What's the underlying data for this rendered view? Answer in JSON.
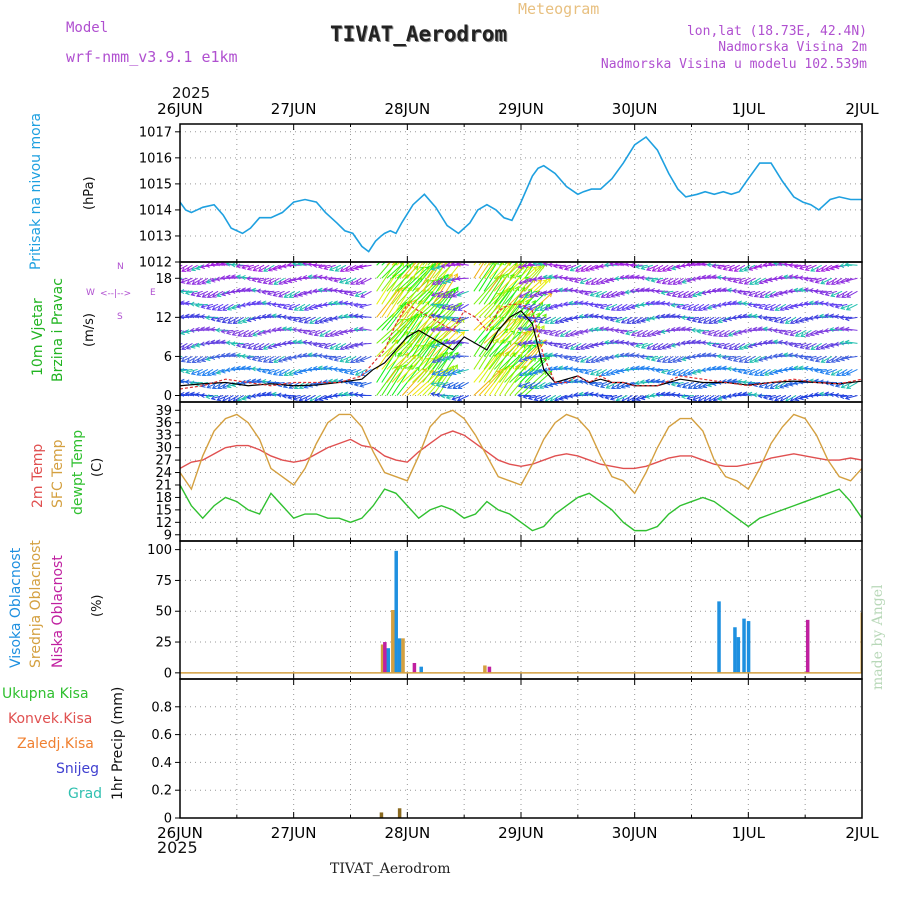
{
  "header": {
    "model_label": "Model",
    "model_name": "wrf-nmm_v3.9.1  e1km",
    "product": "Meteogram",
    "station": "TIVAT_Aerodrom",
    "lonlat": "lon,lat (18.73E, 42.4N)",
    "elevation": "Nadmorska Visina 2m",
    "model_elevation": "Nadmorska Visina u modelu 102.539m",
    "footer_station": "TIVAT_Aerodrom",
    "credit": "made by Angel"
  },
  "colors": {
    "pressure": "#1ea0e0",
    "wind_green": "#22b422",
    "temp2m": "#e05050",
    "sfc_temp": "#d4a040",
    "dewpoint": "#30c030",
    "high_cloud": "#1e90e0",
    "mid_cloud": "#d4a040",
    "low_cloud": "#c020a0",
    "purple": "#b050d0"
  },
  "time_axis": {
    "top_year": "2025",
    "bottom_year": "2025",
    "days": [
      "26JUN",
      "27JUN",
      "28JUN",
      "29JUN",
      "30JUN",
      "1JUL",
      "2JUL"
    ]
  },
  "panel_labels": {
    "pressure": {
      "label": "Pritisak na nivou mora",
      "unit": "(hPa)"
    },
    "wind": {
      "label1": "10m Vjetar",
      "label2": "Brzina i Pravac",
      "unit": "(m/s)",
      "compass_w": "W",
      "compass_e": "E",
      "compass_n": "N",
      "compass_s": "S"
    },
    "temp": {
      "label1": "2m Temp",
      "label2": "SFC Temp",
      "label3": "dewpt Temp",
      "unit": "(C)"
    },
    "cloud": {
      "label1": "Visoka Oblacnost",
      "label2": "Srednja Oblacnost",
      "label3": "Niska Oblacnost",
      "unit": "(%)"
    },
    "precip": {
      "ukupna": "Ukupna Kisa",
      "konvek": "Konvek.Kisa",
      "zaledj": "Zaledj.Kisa",
      "snijeg": "Snijeg",
      "grad": "Grad",
      "unit": "1hr Precip (mm)"
    }
  },
  "chart_data": [
    {
      "type": "line",
      "title": "Pritisak na nivou mora",
      "ylabel": "(hPa)",
      "ylim": [
        1012,
        1017.3
      ],
      "yticks": [
        1012,
        1013,
        1014,
        1015,
        1016,
        1017
      ],
      "x_days": [
        0,
        0.05,
        0.1,
        0.15,
        0.2,
        0.3,
        0.38,
        0.45,
        0.55,
        0.62,
        0.7,
        0.8,
        0.9,
        1,
        1.1,
        1.2,
        1.28,
        1.38,
        1.45,
        1.52,
        1.6,
        1.66,
        1.72,
        1.77,
        1.8,
        1.85,
        1.9,
        1.95,
        2.05,
        2.15,
        2.25,
        2.35,
        2.45,
        2.55,
        2.62,
        2.7,
        2.78,
        2.85,
        2.92,
        3,
        3.05,
        3.1,
        3.15,
        3.2,
        3.3,
        3.4,
        3.5,
        3.55,
        3.62,
        3.7,
        3.8,
        3.9,
        4,
        4.1,
        4.2,
        4.3,
        4.38,
        4.45,
        4.55,
        4.62,
        4.7,
        4.78,
        4.85,
        4.92,
        5,
        5.1,
        5.2,
        5.3,
        5.4,
        5.48,
        5.55,
        5.62,
        5.72,
        5.8,
        5.9,
        6
      ],
      "series": [
        {
          "name": "Pritisak na nivou mora",
          "values": [
            1014.3,
            1014,
            1013.9,
            1014,
            1014.1,
            1014.2,
            1013.8,
            1013.3,
            1013.1,
            1013.3,
            1013.7,
            1013.7,
            1013.9,
            1014.3,
            1014.4,
            1014.3,
            1013.9,
            1013.5,
            1013.2,
            1013.1,
            1012.6,
            1012.4,
            1012.8,
            1013,
            1013.1,
            1013.2,
            1013.1,
            1013.5,
            1014.2,
            1014.6,
            1014.1,
            1013.4,
            1013.1,
            1013.5,
            1014,
            1014.2,
            1014,
            1013.7,
            1013.6,
            1014.3,
            1014.8,
            1015.3,
            1015.6,
            1015.7,
            1015.4,
            1014.9,
            1014.6,
            1014.7,
            1014.8,
            1014.8,
            1015.2,
            1015.8,
            1016.5,
            1016.8,
            1016.3,
            1015.4,
            1014.8,
            1014.5,
            1014.6,
            1014.7,
            1014.6,
            1014.7,
            1014.6,
            1014.7,
            1015.2,
            1015.8,
            1015.8,
            1015.1,
            1014.5,
            1014.3,
            1014.2,
            1014,
            1014.4,
            1014.5,
            1014.4,
            1014.4
          ]
        }
      ]
    },
    {
      "type": "line",
      "title": "10m Vjetar Brzina i Pravac",
      "ylabel": "(m/s)",
      "ylim": [
        -1,
        20.5
      ],
      "yticks": [
        0,
        6,
        12,
        18
      ],
      "x_days": [
        0,
        0.2,
        0.4,
        0.6,
        0.8,
        1,
        1.2,
        1.4,
        1.6,
        1.7,
        1.8,
        1.9,
        2,
        2.1,
        2.2,
        2.3,
        2.4,
        2.5,
        2.6,
        2.7,
        2.8,
        2.9,
        3,
        3.1,
        3.2,
        3.3,
        3.4,
        3.5,
        3.6,
        3.7,
        3.8,
        3.9,
        4,
        4.2,
        4.4,
        4.6,
        4.8,
        5,
        5.2,
        5.4,
        5.6,
        5.8,
        6
      ],
      "series": [
        {
          "name": "speed",
          "values": [
            1.5,
            1.8,
            2,
            1.5,
            1.8,
            1.5,
            1.6,
            2,
            2.5,
            4,
            5,
            7,
            9,
            10,
            9,
            8,
            7,
            9,
            8,
            7,
            10,
            12,
            13,
            11,
            4,
            2,
            2.5,
            3,
            2,
            2.5,
            2,
            2,
            1.5,
            1.5,
            2.5,
            2,
            2,
            1.6,
            2,
            2.2,
            2,
            1.8,
            2.2
          ]
        },
        {
          "name": "gust",
          "values": [
            1,
            1.5,
            2.5,
            2,
            1.5,
            2,
            2,
            2,
            3,
            5,
            7,
            11,
            14,
            13,
            12,
            11,
            10,
            13,
            12,
            10,
            13,
            14,
            14,
            13,
            6,
            2,
            2,
            3,
            2,
            3,
            2,
            2,
            1.5,
            1.5,
            3,
            2.5,
            2,
            1.5,
            2,
            2.5,
            2,
            1.8,
            2.5
          ]
        }
      ]
    },
    {
      "type": "line",
      "title": "2m Temp / SFC Temp / dewpt Temp",
      "ylabel": "(C)",
      "ylim": [
        7.5,
        41
      ],
      "yticks": [
        9,
        12,
        15,
        18,
        21,
        24,
        27,
        30,
        33,
        36,
        39
      ],
      "x_days": [
        0,
        0.1,
        0.2,
        0.3,
        0.4,
        0.5,
        0.6,
        0.7,
        0.8,
        0.9,
        1,
        1.1,
        1.2,
        1.3,
        1.4,
        1.5,
        1.6,
        1.7,
        1.8,
        1.9,
        2,
        2.1,
        2.2,
        2.3,
        2.4,
        2.5,
        2.6,
        2.7,
        2.8,
        2.9,
        3,
        3.1,
        3.2,
        3.3,
        3.4,
        3.5,
        3.6,
        3.7,
        3.8,
        3.9,
        4,
        4.1,
        4.2,
        4.3,
        4.4,
        4.5,
        4.6,
        4.7,
        4.8,
        4.9,
        5,
        5.1,
        5.2,
        5.3,
        5.4,
        5.5,
        5.6,
        5.7,
        5.8,
        5.9,
        6
      ],
      "series": [
        {
          "name": "2m Temp",
          "values": [
            25,
            26.5,
            27,
            28.5,
            30,
            30.5,
            30.5,
            29.5,
            28,
            27,
            26.5,
            27,
            28.5,
            30,
            31,
            32,
            30.5,
            30,
            28,
            27,
            26.5,
            29,
            31,
            33,
            34,
            33,
            31,
            29,
            27,
            26,
            25.5,
            26,
            27,
            28,
            28.5,
            28,
            27,
            26,
            25.5,
            25,
            25,
            25.5,
            26.5,
            27.5,
            28,
            28,
            27,
            26,
            25.5,
            25.5,
            26,
            26.5,
            27.5,
            28,
            28.5,
            28,
            27.5,
            27,
            27,
            27.5,
            27
          ]
        },
        {
          "name": "SFC Temp",
          "values": [
            24,
            20,
            28,
            34,
            37,
            38,
            36,
            32,
            25,
            23,
            21,
            25,
            31,
            36,
            38,
            38,
            35,
            29,
            24,
            23,
            22,
            28,
            35,
            38,
            39,
            37,
            33,
            28,
            23,
            22,
            21,
            26,
            32,
            36,
            38,
            37,
            34,
            28,
            23,
            22,
            19,
            24,
            30,
            35,
            37,
            37,
            34,
            27,
            23,
            22,
            20,
            25,
            31,
            35,
            38,
            37,
            33,
            27,
            23,
            22,
            25
          ]
        },
        {
          "name": "dewpt Temp",
          "values": [
            21,
            16,
            13,
            16,
            18,
            17,
            15,
            14,
            19,
            16,
            13,
            14,
            14,
            13,
            13,
            12,
            13,
            16,
            20,
            19,
            16,
            13,
            15,
            16,
            15,
            13,
            14,
            17,
            15,
            14,
            12,
            10,
            11,
            14,
            16,
            18,
            19,
            17,
            15,
            12,
            10,
            10,
            11,
            14,
            16,
            17,
            18,
            17,
            15,
            13,
            11,
            13,
            14,
            15,
            16,
            17,
            18,
            19,
            20,
            17,
            13
          ]
        }
      ]
    },
    {
      "type": "bar",
      "title": "Visoka / Srednja / Niska Oblacnost",
      "ylabel": "(%)",
      "ylim": [
        -5,
        107
      ],
      "yticks": [
        0,
        25,
        50,
        75,
        100
      ],
      "series": [
        {
          "name": "Visoka Oblacnost",
          "points": [
            [
              1.83,
              20
            ],
            [
              1.9,
              99
            ],
            [
              1.93,
              28
            ],
            [
              2.12,
              5
            ],
            [
              4.74,
              58
            ],
            [
              4.88,
              37
            ],
            [
              4.91,
              29
            ],
            [
              4.96,
              44
            ],
            [
              5,
              42
            ]
          ]
        },
        {
          "name": "Srednja Oblacnost",
          "points": [
            [
              1.78,
              23
            ],
            [
              1.87,
              51
            ],
            [
              1.96,
              28
            ],
            [
              2.68,
              6
            ],
            [
              6,
              49
            ]
          ]
        },
        {
          "name": "Niska Oblacnost",
          "points": [
            [
              1.8,
              25
            ],
            [
              2.06,
              8
            ],
            [
              2.72,
              5
            ],
            [
              5.52,
              43
            ]
          ]
        }
      ]
    },
    {
      "type": "bar",
      "title": "1hr Precip (mm)",
      "ylabel": "1hr Precip (mm)",
      "ylim": [
        0,
        1.0
      ],
      "yticks": [
        0,
        0.2,
        0.4,
        0.6,
        0.8
      ],
      "series": [
        {
          "name": "Ukupna Kisa",
          "points": [
            [
              1.77,
              0.04
            ],
            [
              1.93,
              0.07
            ]
          ]
        }
      ]
    }
  ]
}
